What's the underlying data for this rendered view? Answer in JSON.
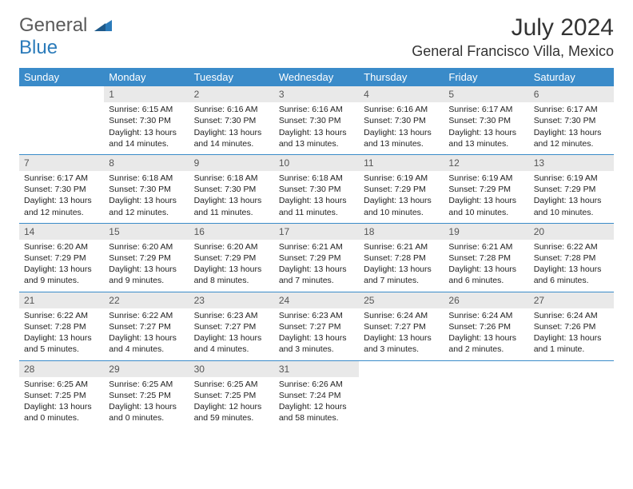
{
  "logo": {
    "text1": "General",
    "text2": "Blue"
  },
  "title": "July 2024",
  "subtitle": "General Francisco Villa, Mexico",
  "colors": {
    "header_bg": "#3a8bc9",
    "daynum_bg": "#e9e9e9",
    "logo_gray": "#5a5a5a",
    "logo_blue": "#2b7bba"
  },
  "daysOfWeek": [
    "Sunday",
    "Monday",
    "Tuesday",
    "Wednesday",
    "Thursday",
    "Friday",
    "Saturday"
  ],
  "weeks": [
    [
      {
        "n": "",
        "sunrise": "",
        "sunset": "",
        "daylight1": "",
        "daylight2": ""
      },
      {
        "n": "1",
        "sunrise": "Sunrise: 6:15 AM",
        "sunset": "Sunset: 7:30 PM",
        "daylight1": "Daylight: 13 hours",
        "daylight2": "and 14 minutes."
      },
      {
        "n": "2",
        "sunrise": "Sunrise: 6:16 AM",
        "sunset": "Sunset: 7:30 PM",
        "daylight1": "Daylight: 13 hours",
        "daylight2": "and 14 minutes."
      },
      {
        "n": "3",
        "sunrise": "Sunrise: 6:16 AM",
        "sunset": "Sunset: 7:30 PM",
        "daylight1": "Daylight: 13 hours",
        "daylight2": "and 13 minutes."
      },
      {
        "n": "4",
        "sunrise": "Sunrise: 6:16 AM",
        "sunset": "Sunset: 7:30 PM",
        "daylight1": "Daylight: 13 hours",
        "daylight2": "and 13 minutes."
      },
      {
        "n": "5",
        "sunrise": "Sunrise: 6:17 AM",
        "sunset": "Sunset: 7:30 PM",
        "daylight1": "Daylight: 13 hours",
        "daylight2": "and 13 minutes."
      },
      {
        "n": "6",
        "sunrise": "Sunrise: 6:17 AM",
        "sunset": "Sunset: 7:30 PM",
        "daylight1": "Daylight: 13 hours",
        "daylight2": "and 12 minutes."
      }
    ],
    [
      {
        "n": "7",
        "sunrise": "Sunrise: 6:17 AM",
        "sunset": "Sunset: 7:30 PM",
        "daylight1": "Daylight: 13 hours",
        "daylight2": "and 12 minutes."
      },
      {
        "n": "8",
        "sunrise": "Sunrise: 6:18 AM",
        "sunset": "Sunset: 7:30 PM",
        "daylight1": "Daylight: 13 hours",
        "daylight2": "and 12 minutes."
      },
      {
        "n": "9",
        "sunrise": "Sunrise: 6:18 AM",
        "sunset": "Sunset: 7:30 PM",
        "daylight1": "Daylight: 13 hours",
        "daylight2": "and 11 minutes."
      },
      {
        "n": "10",
        "sunrise": "Sunrise: 6:18 AM",
        "sunset": "Sunset: 7:30 PM",
        "daylight1": "Daylight: 13 hours",
        "daylight2": "and 11 minutes."
      },
      {
        "n": "11",
        "sunrise": "Sunrise: 6:19 AM",
        "sunset": "Sunset: 7:29 PM",
        "daylight1": "Daylight: 13 hours",
        "daylight2": "and 10 minutes."
      },
      {
        "n": "12",
        "sunrise": "Sunrise: 6:19 AM",
        "sunset": "Sunset: 7:29 PM",
        "daylight1": "Daylight: 13 hours",
        "daylight2": "and 10 minutes."
      },
      {
        "n": "13",
        "sunrise": "Sunrise: 6:19 AM",
        "sunset": "Sunset: 7:29 PM",
        "daylight1": "Daylight: 13 hours",
        "daylight2": "and 10 minutes."
      }
    ],
    [
      {
        "n": "14",
        "sunrise": "Sunrise: 6:20 AM",
        "sunset": "Sunset: 7:29 PM",
        "daylight1": "Daylight: 13 hours",
        "daylight2": "and 9 minutes."
      },
      {
        "n": "15",
        "sunrise": "Sunrise: 6:20 AM",
        "sunset": "Sunset: 7:29 PM",
        "daylight1": "Daylight: 13 hours",
        "daylight2": "and 9 minutes."
      },
      {
        "n": "16",
        "sunrise": "Sunrise: 6:20 AM",
        "sunset": "Sunset: 7:29 PM",
        "daylight1": "Daylight: 13 hours",
        "daylight2": "and 8 minutes."
      },
      {
        "n": "17",
        "sunrise": "Sunrise: 6:21 AM",
        "sunset": "Sunset: 7:29 PM",
        "daylight1": "Daylight: 13 hours",
        "daylight2": "and 7 minutes."
      },
      {
        "n": "18",
        "sunrise": "Sunrise: 6:21 AM",
        "sunset": "Sunset: 7:28 PM",
        "daylight1": "Daylight: 13 hours",
        "daylight2": "and 7 minutes."
      },
      {
        "n": "19",
        "sunrise": "Sunrise: 6:21 AM",
        "sunset": "Sunset: 7:28 PM",
        "daylight1": "Daylight: 13 hours",
        "daylight2": "and 6 minutes."
      },
      {
        "n": "20",
        "sunrise": "Sunrise: 6:22 AM",
        "sunset": "Sunset: 7:28 PM",
        "daylight1": "Daylight: 13 hours",
        "daylight2": "and 6 minutes."
      }
    ],
    [
      {
        "n": "21",
        "sunrise": "Sunrise: 6:22 AM",
        "sunset": "Sunset: 7:28 PM",
        "daylight1": "Daylight: 13 hours",
        "daylight2": "and 5 minutes."
      },
      {
        "n": "22",
        "sunrise": "Sunrise: 6:22 AM",
        "sunset": "Sunset: 7:27 PM",
        "daylight1": "Daylight: 13 hours",
        "daylight2": "and 4 minutes."
      },
      {
        "n": "23",
        "sunrise": "Sunrise: 6:23 AM",
        "sunset": "Sunset: 7:27 PM",
        "daylight1": "Daylight: 13 hours",
        "daylight2": "and 4 minutes."
      },
      {
        "n": "24",
        "sunrise": "Sunrise: 6:23 AM",
        "sunset": "Sunset: 7:27 PM",
        "daylight1": "Daylight: 13 hours",
        "daylight2": "and 3 minutes."
      },
      {
        "n": "25",
        "sunrise": "Sunrise: 6:24 AM",
        "sunset": "Sunset: 7:27 PM",
        "daylight1": "Daylight: 13 hours",
        "daylight2": "and 3 minutes."
      },
      {
        "n": "26",
        "sunrise": "Sunrise: 6:24 AM",
        "sunset": "Sunset: 7:26 PM",
        "daylight1": "Daylight: 13 hours",
        "daylight2": "and 2 minutes."
      },
      {
        "n": "27",
        "sunrise": "Sunrise: 6:24 AM",
        "sunset": "Sunset: 7:26 PM",
        "daylight1": "Daylight: 13 hours",
        "daylight2": "and 1 minute."
      }
    ],
    [
      {
        "n": "28",
        "sunrise": "Sunrise: 6:25 AM",
        "sunset": "Sunset: 7:25 PM",
        "daylight1": "Daylight: 13 hours",
        "daylight2": "and 0 minutes."
      },
      {
        "n": "29",
        "sunrise": "Sunrise: 6:25 AM",
        "sunset": "Sunset: 7:25 PM",
        "daylight1": "Daylight: 13 hours",
        "daylight2": "and 0 minutes."
      },
      {
        "n": "30",
        "sunrise": "Sunrise: 6:25 AM",
        "sunset": "Sunset: 7:25 PM",
        "daylight1": "Daylight: 12 hours",
        "daylight2": "and 59 minutes."
      },
      {
        "n": "31",
        "sunrise": "Sunrise: 6:26 AM",
        "sunset": "Sunset: 7:24 PM",
        "daylight1": "Daylight: 12 hours",
        "daylight2": "and 58 minutes."
      },
      {
        "n": "",
        "sunrise": "",
        "sunset": "",
        "daylight1": "",
        "daylight2": ""
      },
      {
        "n": "",
        "sunrise": "",
        "sunset": "",
        "daylight1": "",
        "daylight2": ""
      },
      {
        "n": "",
        "sunrise": "",
        "sunset": "",
        "daylight1": "",
        "daylight2": ""
      }
    ]
  ]
}
